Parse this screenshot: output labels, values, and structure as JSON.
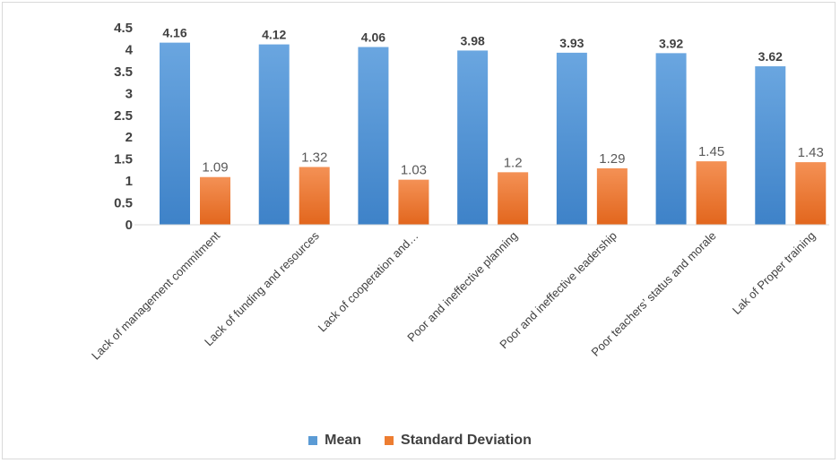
{
  "chart_data": {
    "type": "bar",
    "categories": [
      "Lack of management commitment",
      "Lack of funding and resources",
      "Lack of cooperation and…",
      "Poor and ineffective planning",
      "Poor and ineffective leadership",
      "Poor teachers’ status and morale",
      "Lak of Proper training"
    ],
    "series": [
      {
        "name": "Mean",
        "values": [
          4.16,
          4.12,
          4.06,
          3.98,
          3.93,
          3.92,
          3.62
        ],
        "labels": [
          "4.16",
          "4.12",
          "4.06",
          "3.98",
          "3.93",
          "3.92",
          "3.62"
        ],
        "color": "#5b9bd5"
      },
      {
        "name": "Standard Deviation",
        "values": [
          1.09,
          1.32,
          1.03,
          1.2,
          1.29,
          1.45,
          1.43
        ],
        "labels": [
          "1.09",
          "1.32",
          "1.03",
          "1.2",
          "1.29",
          "1.45",
          "1.43"
        ],
        "color": "#ed7d31"
      }
    ],
    "yticks": [
      "0",
      "0.5",
      "1",
      "1.5",
      "2",
      "2.5",
      "3",
      "3.5",
      "4",
      "4.5"
    ],
    "ylim": [
      0,
      4.5
    ],
    "legend_position": "bottom",
    "grid": false
  }
}
